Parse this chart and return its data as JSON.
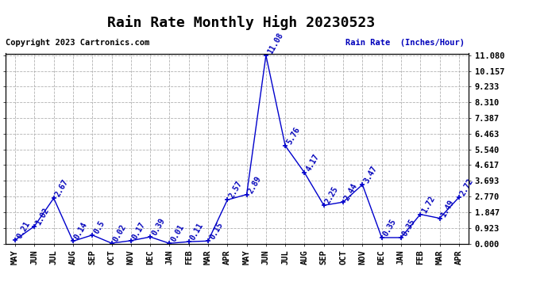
{
  "title": "Rain Rate Monthly High 20230523",
  "copyright": "Copyright 2023 Cartronics.com",
  "ylabel": "Rain Rate  (Inches/Hour)",
  "months": [
    "MAY",
    "JUN",
    "JUL",
    "AUG",
    "SEP",
    "OCT",
    "NOV",
    "DEC",
    "JAN",
    "FEB",
    "MAR",
    "APR",
    "MAY",
    "JUN",
    "JUL",
    "AUG",
    "SEP",
    "OCT",
    "NOV",
    "DEC",
    "JAN",
    "FEB",
    "MAR",
    "APR"
  ],
  "values": [
    0.21,
    1.02,
    2.67,
    0.14,
    0.5,
    0.02,
    0.17,
    0.39,
    0.01,
    0.11,
    0.15,
    2.57,
    2.89,
    11.08,
    5.76,
    4.17,
    2.25,
    2.44,
    3.47,
    0.35,
    0.35,
    1.72,
    1.49,
    2.72
  ],
  "line_color": "#0000cc",
  "marker_color": "#0000cc",
  "title_color": "#000000",
  "label_color": "#0000bb",
  "copyright_color": "#000000",
  "grid_color": "#aaaaaa",
  "background_color": "#ffffff",
  "ylim_min": 0.0,
  "ylim_max": 11.08,
  "yticks": [
    0.0,
    0.923,
    1.847,
    2.77,
    3.693,
    4.617,
    5.54,
    6.463,
    7.387,
    8.31,
    9.233,
    10.157,
    11.08
  ],
  "title_fontsize": 13,
  "label_fontsize": 7.5,
  "tick_fontsize": 7.5,
  "copyright_fontsize": 7.5,
  "annot_fontsize": 7
}
